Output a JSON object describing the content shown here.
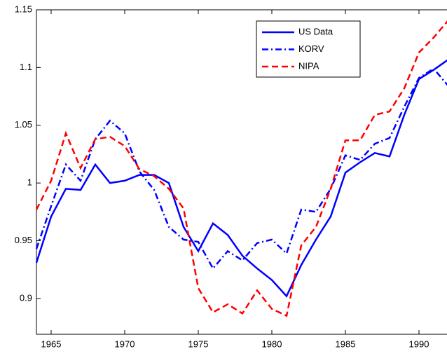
{
  "chart_data": {
    "type": "line",
    "x": [
      1964,
      1965,
      1966,
      1967,
      1968,
      1969,
      1970,
      1971,
      1972,
      1973,
      1974,
      1975,
      1976,
      1977,
      1978,
      1979,
      1980,
      1981,
      1982,
      1983,
      1984,
      1985,
      1986,
      1987,
      1988,
      1989,
      1990,
      1991,
      1992
    ],
    "series": [
      {
        "name": "US Data",
        "color": "#0000ff",
        "style": "solid",
        "values": [
          0.931,
          0.971,
          0.995,
          0.994,
          1.016,
          1.0,
          1.002,
          1.007,
          1.007,
          1.0,
          0.962,
          0.941,
          0.965,
          0.955,
          0.937,
          0.926,
          0.916,
          0.902,
          0.929,
          0.951,
          0.971,
          1.009,
          1.018,
          1.026,
          1.023,
          1.059,
          1.09,
          1.098,
          1.107
        ]
      },
      {
        "name": "KORV",
        "color": "#0000ff",
        "style": "dashdot",
        "values": [
          0.943,
          0.98,
          1.016,
          1.002,
          1.038,
          1.054,
          1.043,
          1.01,
          0.994,
          0.962,
          0.951,
          0.949,
          0.926,
          0.941,
          0.933,
          0.948,
          0.951,
          0.939,
          0.977,
          0.975,
          0.995,
          1.024,
          1.02,
          1.034,
          1.039,
          1.066,
          1.091,
          1.099,
          1.084
        ]
      },
      {
        "name": "NIPA",
        "color": "#ff0000",
        "style": "dashed",
        "values": [
          0.977,
          1.002,
          1.043,
          1.013,
          1.038,
          1.04,
          1.032,
          1.012,
          1.006,
          0.995,
          0.978,
          0.909,
          0.888,
          0.895,
          0.887,
          0.907,
          0.891,
          0.885,
          0.946,
          0.962,
          0.995,
          1.037,
          1.037,
          1.059,
          1.062,
          1.082,
          1.113,
          1.126,
          1.141
        ]
      }
    ],
    "xlim": [
      1964,
      1992
    ],
    "xticks": [
      1965,
      1970,
      1975,
      1980,
      1985,
      1990
    ],
    "ylim": [
      0.869,
      1.15
    ],
    "yticks": [
      0.9,
      0.95,
      1,
      1.05,
      1.1,
      1.15
    ],
    "legend": "upper-right"
  }
}
